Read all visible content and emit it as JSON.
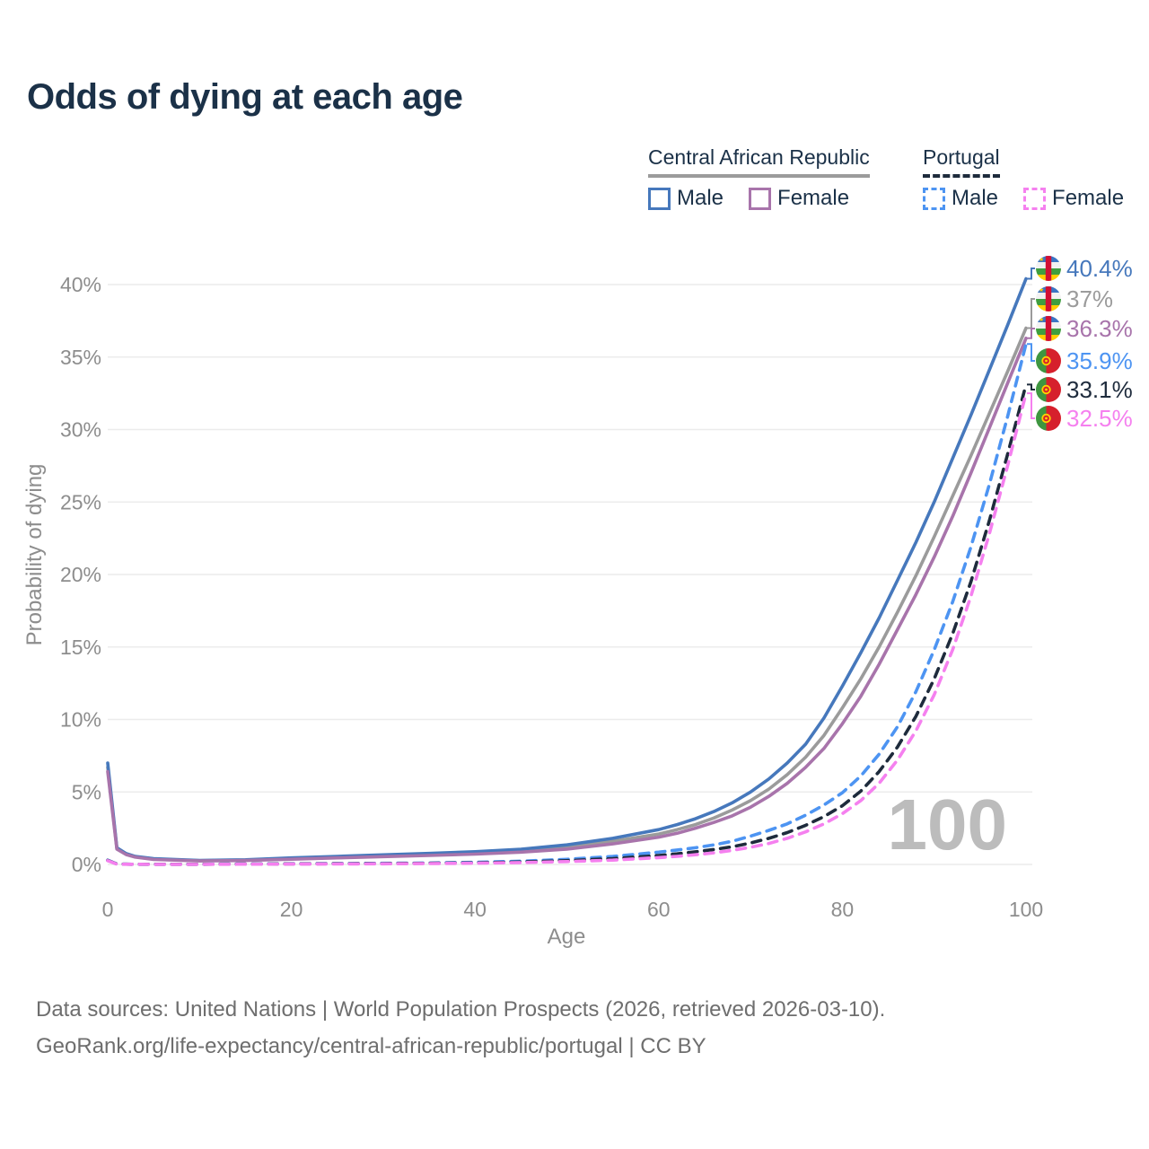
{
  "title": "Odds of dying at each age",
  "legend": {
    "groups": [
      {
        "id": "car",
        "label": "Central African Republic",
        "underline_style": "solid",
        "underline_color": "#9b9b9b",
        "items": [
          {
            "id": "male",
            "label": "Male",
            "color": "#4678bc",
            "dashed": false
          },
          {
            "id": "female",
            "label": "Female",
            "color": "#a874ab",
            "dashed": false
          }
        ]
      },
      {
        "id": "portugal",
        "label": "Portugal",
        "underline_style": "dashed",
        "underline_color": "#1e2b3c",
        "items": [
          {
            "id": "male",
            "label": "Male",
            "color": "#4d94f2",
            "dashed": true
          },
          {
            "id": "female",
            "label": "Female",
            "color": "#f580ef",
            "dashed": true
          }
        ]
      }
    ]
  },
  "chart_data": {
    "type": "line",
    "title": "Odds of dying at each age",
    "xlabel": "Age",
    "ylabel": "Probability of dying",
    "xlim": [
      0,
      100
    ],
    "ylim": [
      0,
      42
    ],
    "x_ticks": [
      0,
      20,
      40,
      60,
      80,
      100
    ],
    "y_ticks": [
      0,
      5,
      10,
      15,
      20,
      25,
      30,
      35,
      40
    ],
    "y_tick_suffix": "%",
    "grid": true,
    "legend_position": "top-right",
    "watermark": "100",
    "ages": [
      0,
      1,
      2,
      3,
      5,
      10,
      15,
      20,
      25,
      30,
      35,
      40,
      45,
      50,
      55,
      60,
      62,
      64,
      66,
      68,
      70,
      72,
      74,
      76,
      78,
      80,
      82,
      84,
      86,
      88,
      90,
      92,
      94,
      96,
      98,
      100
    ],
    "series": [
      {
        "id": "car-male",
        "name": "Central African Republic Male",
        "color": "#4678bc",
        "dashed": false,
        "end_label": "40.4%",
        "flag": "car",
        "values": [
          7.0,
          1.15,
          0.75,
          0.55,
          0.4,
          0.28,
          0.32,
          0.45,
          0.56,
          0.66,
          0.76,
          0.88,
          1.05,
          1.35,
          1.8,
          2.4,
          2.75,
          3.15,
          3.65,
          4.25,
          5.0,
          5.9,
          7.0,
          8.3,
          10.1,
          12.3,
          14.6,
          17.0,
          19.6,
          22.2,
          25.0,
          28.0,
          31.0,
          34.1,
          37.2,
          40.4
        ]
      },
      {
        "id": "car-total",
        "name": "Central African Republic",
        "color": "#9b9b9b",
        "dashed": false,
        "end_label": "37%",
        "flag": "car",
        "values": [
          6.7,
          1.1,
          0.72,
          0.52,
          0.37,
          0.26,
          0.29,
          0.4,
          0.5,
          0.6,
          0.69,
          0.79,
          0.95,
          1.2,
          1.6,
          2.1,
          2.4,
          2.75,
          3.2,
          3.75,
          4.4,
          5.2,
          6.2,
          7.4,
          8.9,
          10.8,
          12.8,
          15.0,
          17.4,
          19.9,
          22.6,
          25.4,
          28.2,
          31.1,
          34.0,
          37.0
        ]
      },
      {
        "id": "car-female",
        "name": "Central African Republic Female",
        "color": "#a874ab",
        "dashed": false,
        "end_label": "36.3%",
        "flag": "car",
        "values": [
          6.4,
          1.05,
          0.68,
          0.5,
          0.34,
          0.24,
          0.27,
          0.36,
          0.45,
          0.54,
          0.62,
          0.71,
          0.85,
          1.06,
          1.42,
          1.88,
          2.15,
          2.5,
          2.9,
          3.35,
          3.95,
          4.7,
          5.6,
          6.7,
          8.0,
          9.7,
          11.6,
          13.8,
          16.2,
          18.6,
          21.2,
          24.0,
          27.0,
          30.1,
          33.2,
          36.3
        ]
      },
      {
        "id": "portugal-male",
        "name": "Portugal Male",
        "color": "#4d94f2",
        "dashed": true,
        "end_label": "35.9%",
        "flag": "pt",
        "values": [
          0.3,
          0.03,
          0.02,
          0.015,
          0.012,
          0.012,
          0.03,
          0.05,
          0.06,
          0.08,
          0.1,
          0.15,
          0.22,
          0.35,
          0.55,
          0.85,
          1.0,
          1.15,
          1.35,
          1.6,
          1.95,
          2.35,
          2.8,
          3.4,
          4.1,
          4.95,
          6.1,
          7.6,
          9.5,
          11.9,
          14.8,
          18.1,
          21.9,
          26.2,
          30.9,
          35.9
        ]
      },
      {
        "id": "portugal-total",
        "name": "Portugal",
        "color": "#1e2b3c",
        "dashed": true,
        "end_label": "33.1%",
        "flag": "pt",
        "values": [
          0.28,
          0.025,
          0.018,
          0.013,
          0.01,
          0.01,
          0.022,
          0.038,
          0.048,
          0.06,
          0.078,
          0.11,
          0.17,
          0.26,
          0.4,
          0.62,
          0.73,
          0.87,
          1.03,
          1.22,
          1.48,
          1.8,
          2.2,
          2.7,
          3.3,
          4.05,
          5.05,
          6.4,
          8.1,
          10.2,
          12.8,
          15.9,
          19.5,
          23.7,
          28.3,
          33.1
        ]
      },
      {
        "id": "portugal-female",
        "name": "Portugal Female",
        "color": "#f580ef",
        "dashed": true,
        "end_label": "32.5%",
        "flag": "pt",
        "values": [
          0.26,
          0.02,
          0.015,
          0.012,
          0.009,
          0.009,
          0.016,
          0.026,
          0.034,
          0.045,
          0.06,
          0.085,
          0.13,
          0.2,
          0.3,
          0.47,
          0.56,
          0.67,
          0.8,
          0.97,
          1.18,
          1.45,
          1.8,
          2.25,
          2.8,
          3.5,
          4.4,
          5.6,
          7.2,
          9.2,
          11.7,
          14.8,
          18.5,
          22.8,
          27.5,
          32.5
        ]
      }
    ]
  },
  "footer": {
    "line1": "Data sources: United Nations | World Population Prospects (2026, retrieved 2026-03-10).",
    "line2": "GeoRank.org/life-expectancy/central-african-republic/portugal | CC BY"
  }
}
